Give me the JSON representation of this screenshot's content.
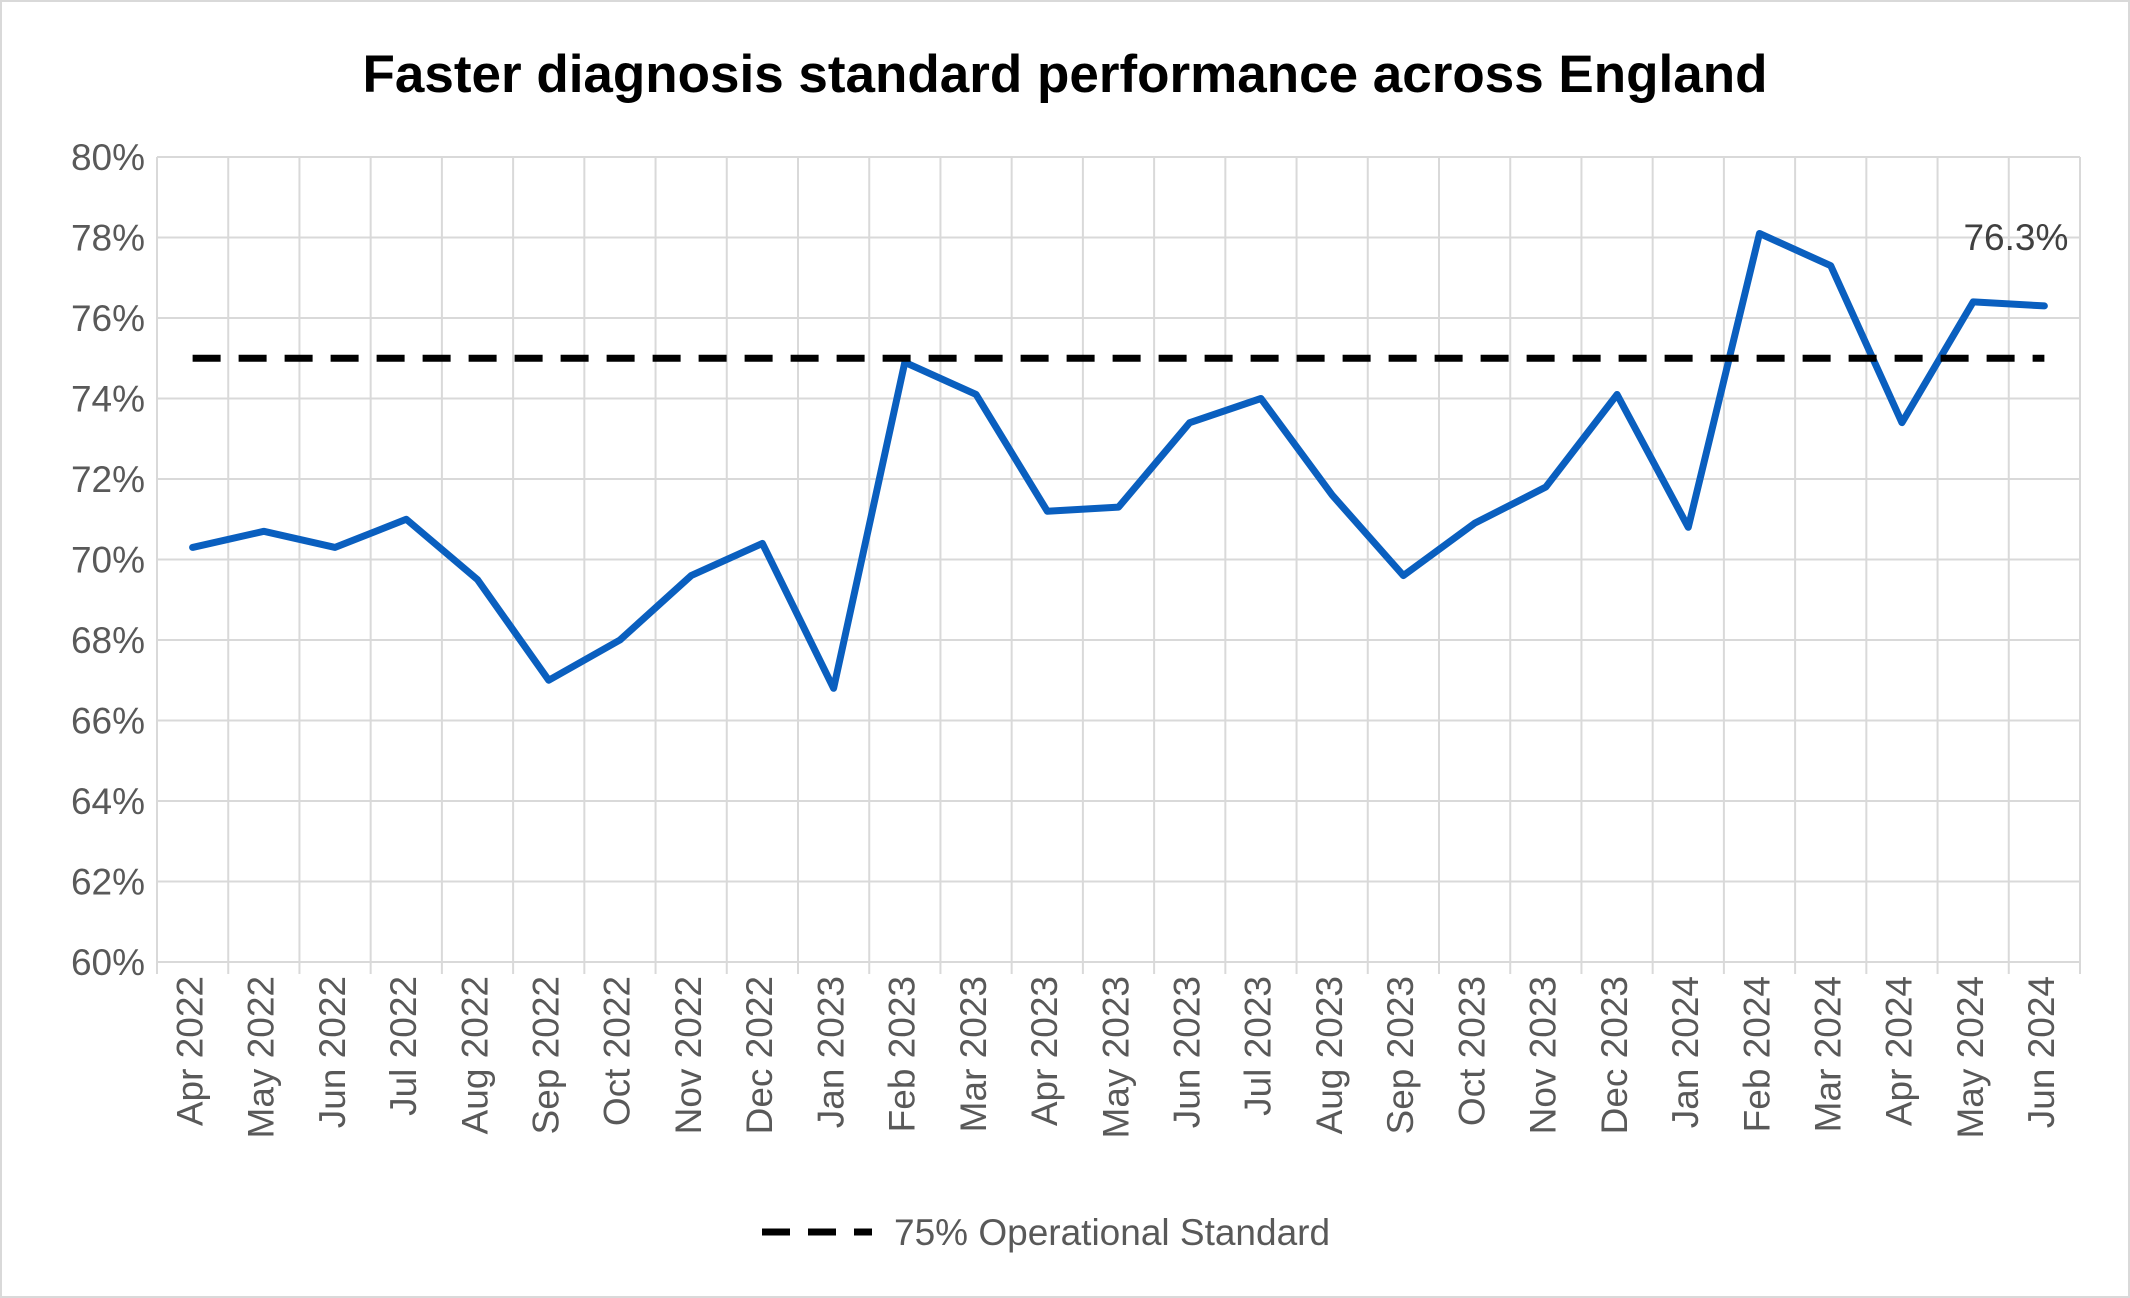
{
  "chart_data": {
    "type": "line",
    "title": "Faster diagnosis standard performance across England",
    "xlabel": "",
    "ylabel": "",
    "categories": [
      "Apr 2022",
      "May 2022",
      "Jun 2022",
      "Jul 2022",
      "Aug 2022",
      "Sep 2022",
      "Oct 2022",
      "Nov 2022",
      "Dec 2022",
      "Jan 2023",
      "Feb 2023",
      "Mar 2023",
      "Apr 2023",
      "May 2023",
      "Jun 2023",
      "Jul 2023",
      "Aug 2023",
      "Sep 2023",
      "Oct 2023",
      "Nov 2023",
      "Dec 2023",
      "Jan 2024",
      "Feb 2024",
      "Mar 2024",
      "Apr 2024",
      "May 2024",
      "Jun 2024"
    ],
    "ylim": [
      60,
      80
    ],
    "yticks": [
      60,
      62,
      64,
      66,
      68,
      70,
      72,
      74,
      76,
      78,
      80
    ],
    "ytick_suffix": "%",
    "grid": true,
    "legend_position": "bottom",
    "series": [
      {
        "name": "",
        "color": "#0a5fbf",
        "style": "solid",
        "values": [
          70.3,
          70.7,
          70.3,
          71.0,
          69.5,
          67.0,
          68.0,
          69.6,
          70.4,
          66.8,
          74.9,
          74.1,
          71.2,
          71.3,
          73.4,
          74.0,
          71.6,
          69.6,
          70.9,
          71.8,
          74.1,
          70.8,
          78.1,
          77.3,
          73.4,
          76.4,
          76.3
        ]
      },
      {
        "name": "75% Operational Standard",
        "color": "#000000",
        "style": "dashed",
        "values": [
          75,
          75,
          75,
          75,
          75,
          75,
          75,
          75,
          75,
          75,
          75,
          75,
          75,
          75,
          75,
          75,
          75,
          75,
          75,
          75,
          75,
          75,
          75,
          75,
          75,
          75,
          75
        ]
      }
    ],
    "annotations": [
      {
        "text": "76.3%",
        "category": "Jun 2024",
        "value": 76.3
      }
    ]
  }
}
